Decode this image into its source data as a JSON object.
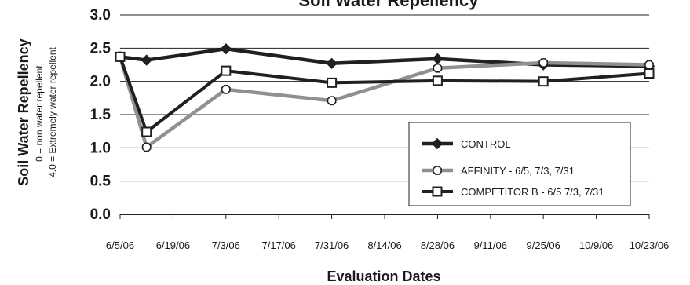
{
  "chart_data": {
    "type": "line",
    "title": "Soil Water Repellency",
    "xlabel": "Evaluation Dates",
    "ylabel": "Soil Water Repellency",
    "ylabel_sub1": "0 = non water repellent,",
    "ylabel_sub2": "4.0 = Extremely water repellent",
    "ylim": [
      0,
      3.0
    ],
    "yticks": [
      "0.0",
      "0.5",
      "1.0",
      "1.5",
      "2.0",
      "2.5",
      "3.0"
    ],
    "xticks": [
      "6/5/06",
      "6/19/06",
      "7/3/06",
      "7/17/06",
      "7/31/06",
      "8/14/06",
      "8/28/06",
      "9/11/06",
      "9/25/06",
      "10/9/06",
      "10/23/06"
    ],
    "grid": "horizontal",
    "legend_position": "bottom-right",
    "series": [
      {
        "name": "CONTROL",
        "color": "#231f20",
        "marker": "diamond",
        "points": [
          {
            "x": "6/5/06",
            "y": 2.37
          },
          {
            "x": "6/12/06",
            "y": 2.32
          },
          {
            "x": "7/3/06",
            "y": 2.49
          },
          {
            "x": "7/31/06",
            "y": 2.27
          },
          {
            "x": "8/28/06",
            "y": 2.34
          },
          {
            "x": "9/25/06",
            "y": 2.25
          },
          {
            "x": "10/23/06",
            "y": 2.23
          }
        ]
      },
      {
        "name": "AFFINITY - 6/5, 7/3, 7/31",
        "color": "#8e9093",
        "marker": "octagon",
        "points": [
          {
            "x": "6/5/06",
            "y": 2.37
          },
          {
            "x": "6/12/06",
            "y": 1.01
          },
          {
            "x": "7/3/06",
            "y": 1.88
          },
          {
            "x": "7/31/06",
            "y": 1.71
          },
          {
            "x": "8/28/06",
            "y": 2.2
          },
          {
            "x": "9/25/06",
            "y": 2.28
          },
          {
            "x": "10/23/06",
            "y": 2.25
          }
        ]
      },
      {
        "name": "COMPETITOR B - 6/5 7/3, 7/31",
        "color": "#231f20",
        "marker": "square",
        "points": [
          {
            "x": "6/5/06",
            "y": 2.37
          },
          {
            "x": "6/12/06",
            "y": 1.24
          },
          {
            "x": "7/3/06",
            "y": 2.16
          },
          {
            "x": "7/31/06",
            "y": 1.98
          },
          {
            "x": "8/28/06",
            "y": 2.01
          },
          {
            "x": "9/25/06",
            "y": 2.0
          },
          {
            "x": "10/23/06",
            "y": 2.12
          }
        ]
      }
    ]
  }
}
